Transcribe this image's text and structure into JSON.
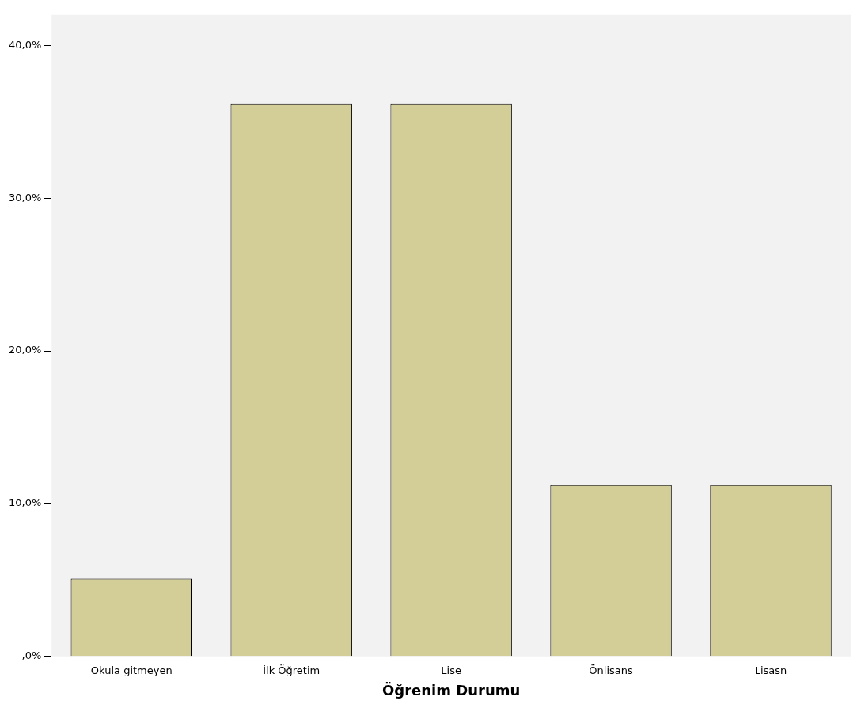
{
  "chart_data": {
    "type": "bar",
    "xlabel": "Öğrenim Durumu",
    "categories": [
      "Okula gitmeyen",
      "İlk Öğretim",
      "Lise",
      "Önlisans",
      "Lisasn"
    ],
    "values": [
      5.1,
      36.2,
      36.2,
      11.2,
      11.2
    ],
    "color": "#d3ce97",
    "ylim": [
      0,
      42
    ],
    "yticks": [
      {
        "value": 0,
        "label": ",0%"
      },
      {
        "value": 10,
        "label": "10,0%"
      },
      {
        "value": 20,
        "label": "20,0%"
      },
      {
        "value": 30,
        "label": "30,0%"
      },
      {
        "value": 40,
        "label": "40,0%"
      }
    ],
    "grid": false,
    "legend": false
  }
}
